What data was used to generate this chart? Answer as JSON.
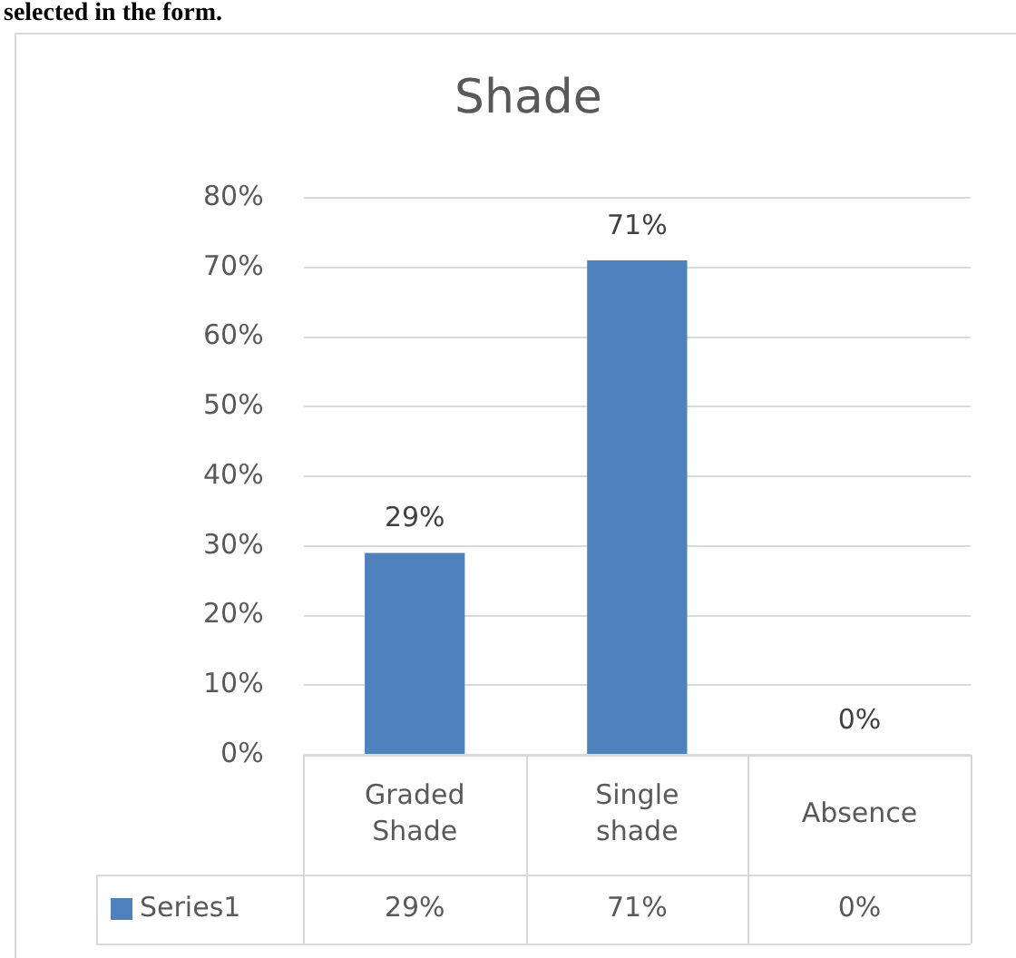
{
  "chart_data": {
    "type": "bar",
    "title": "Shade",
    "categories": [
      "Graded Shade",
      "Single shade",
      "Absence"
    ],
    "series": [
      {
        "name": "Series1",
        "color": "#4f81bd",
        "values": [
          29,
          71,
          0
        ],
        "value_labels": [
          "29%",
          "71%",
          "0%"
        ]
      }
    ],
    "ylim": [
      0,
      80
    ],
    "yticks": [
      {
        "value": 0,
        "label": "0%"
      },
      {
        "value": 10,
        "label": "10%"
      },
      {
        "value": 20,
        "label": "20%"
      },
      {
        "value": 30,
        "label": "30%"
      },
      {
        "value": 40,
        "label": "40%"
      },
      {
        "value": 50,
        "label": "50%"
      },
      {
        "value": 60,
        "label": "60%"
      },
      {
        "value": 70,
        "label": "70%"
      },
      {
        "value": 80,
        "label": "80%"
      }
    ],
    "grid": "y",
    "legend": "bottom",
    "data_labels": true,
    "annotations": [
      "selected in the form."
    ]
  }
}
